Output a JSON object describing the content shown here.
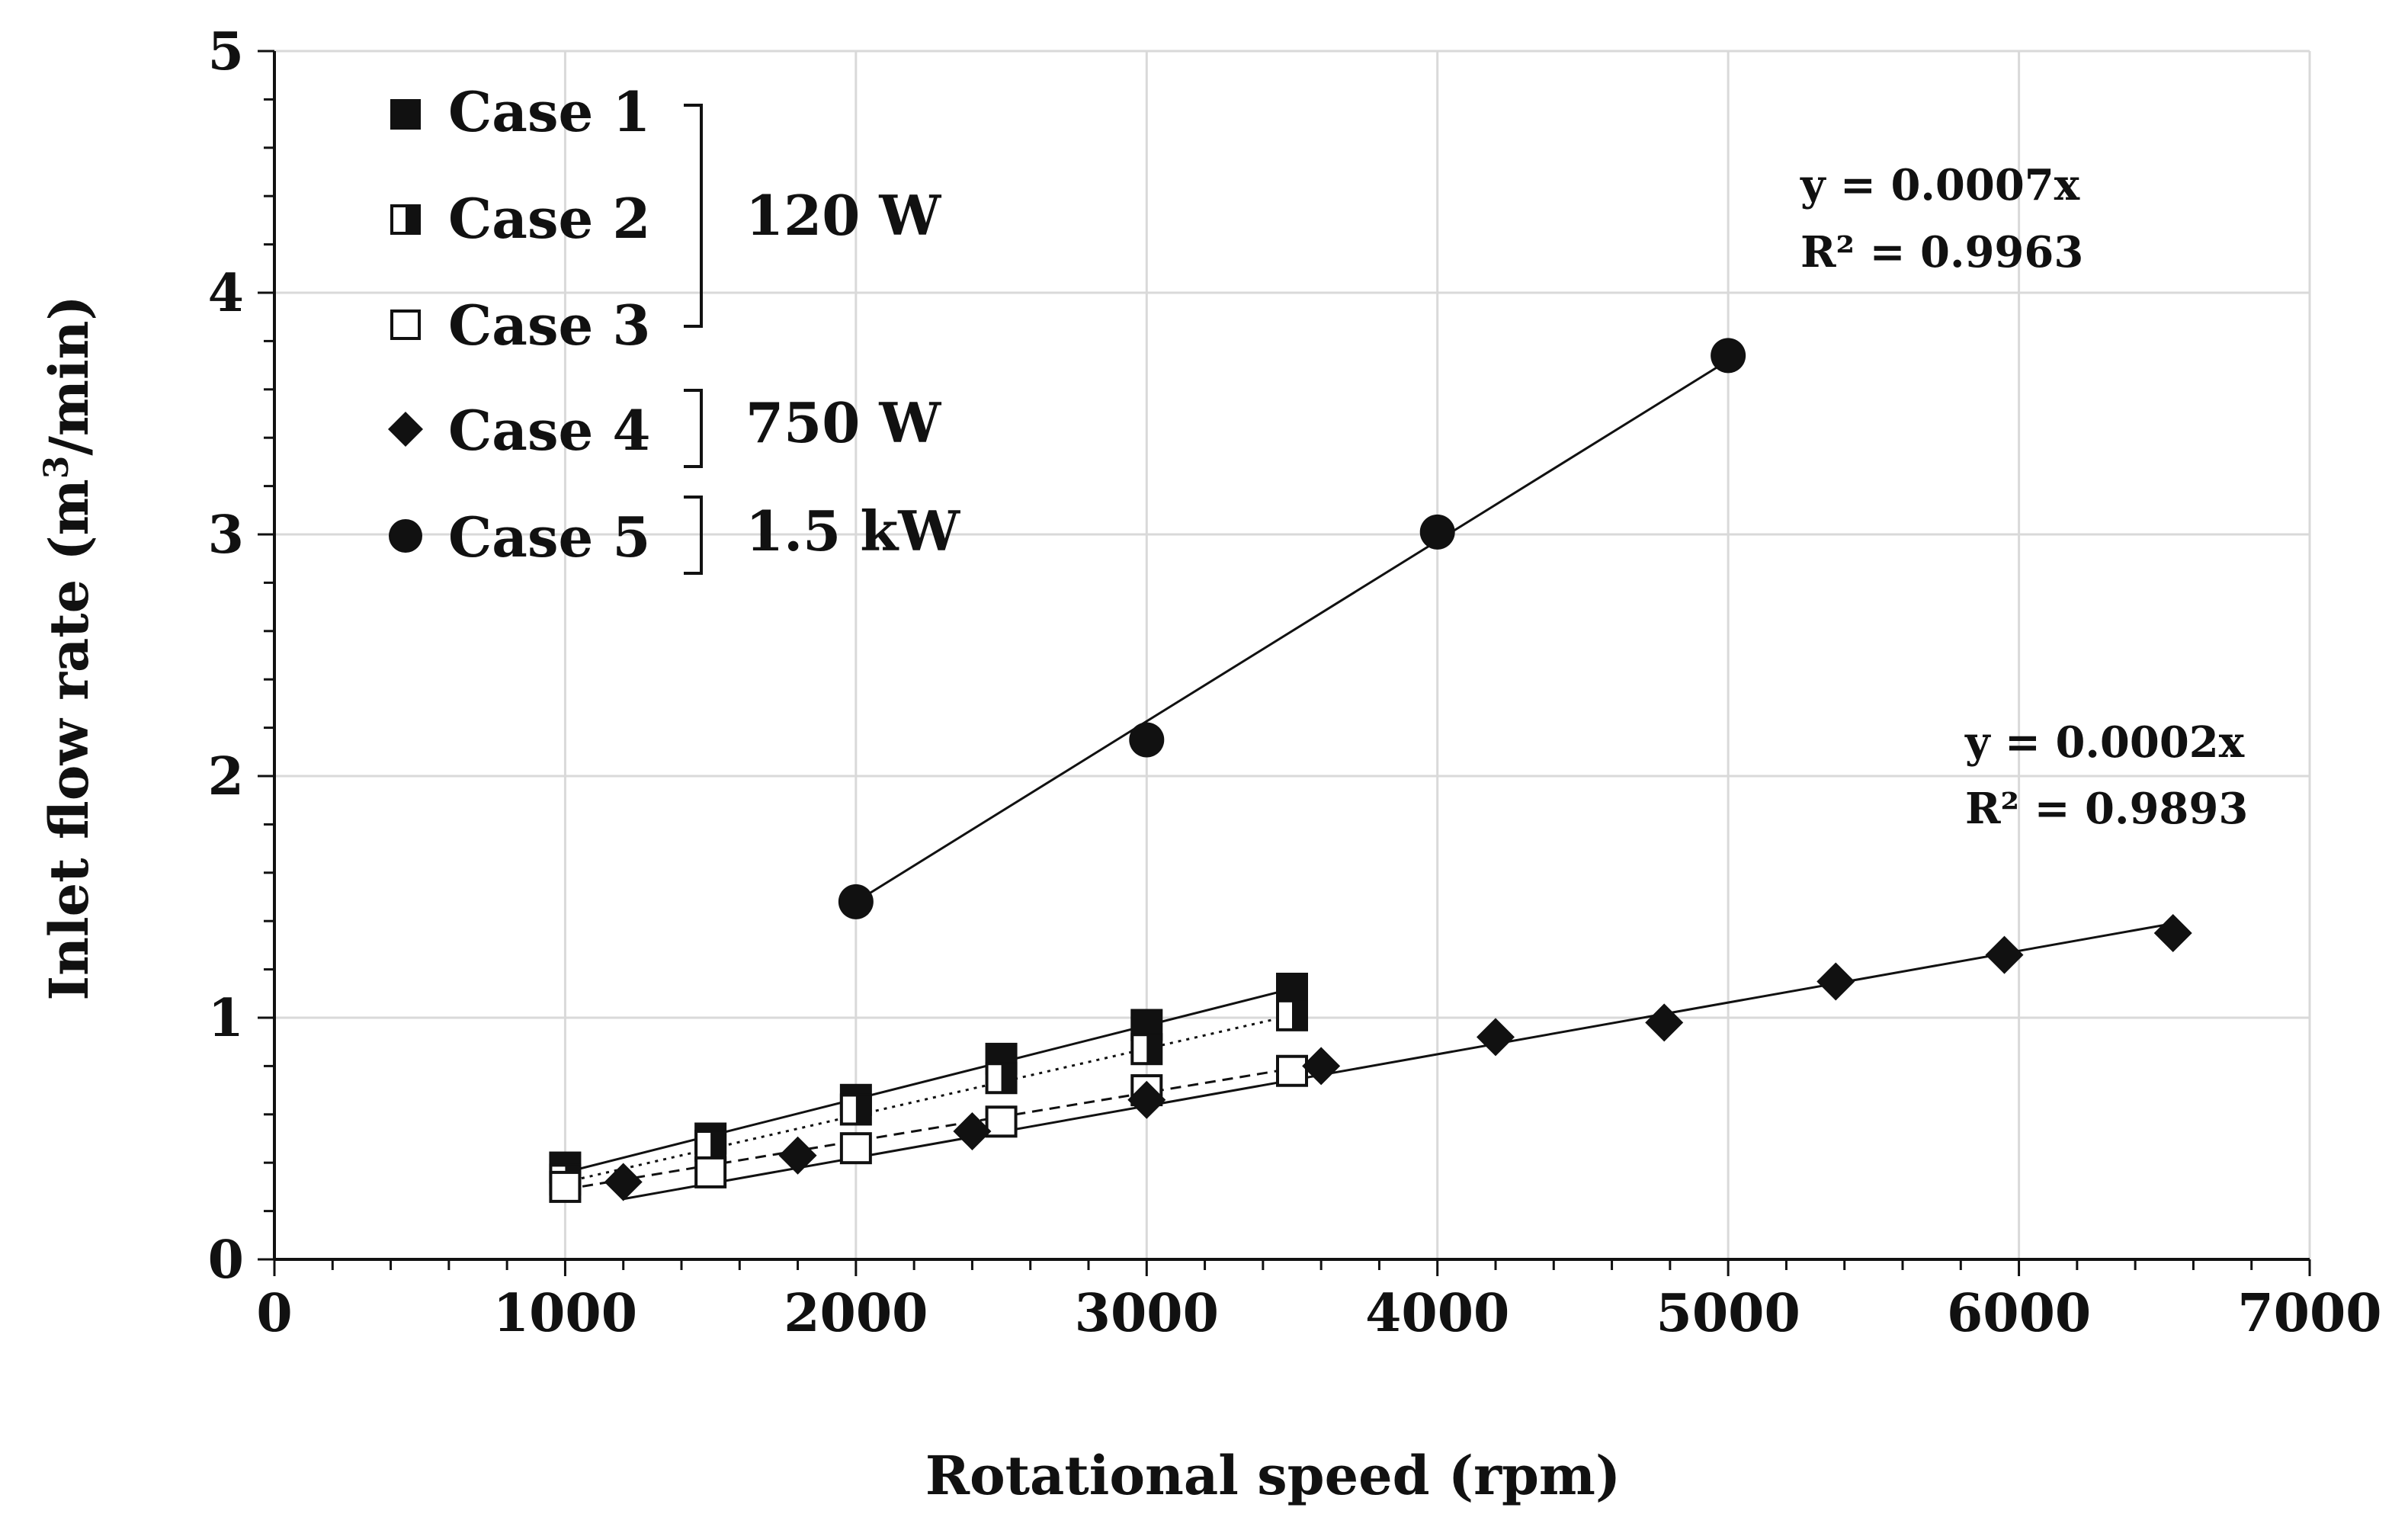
{
  "chart_data": {
    "type": "scatter",
    "xlabel": "Rotational speed (rpm)",
    "ylabel_main": "Inlet flow rate (m",
    "ylabel_sup": "3",
    "ylabel_tail": "/min)",
    "xlim": [
      0,
      7000
    ],
    "ylim": [
      0,
      5
    ],
    "x_ticks": [
      "0",
      "1000",
      "2000",
      "3000",
      "4000",
      "5000",
      "6000",
      "7000"
    ],
    "y_ticks": [
      "0",
      "1",
      "2",
      "3",
      "4",
      "5"
    ],
    "grid": true,
    "legend_position": "top-left",
    "series": [
      {
        "name": "Case 1",
        "marker": "square-filled",
        "line": "solid",
        "x": [
          1000,
          1500,
          2000,
          2500,
          3000,
          3500
        ],
        "y": [
          0.38,
          0.5,
          0.66,
          0.83,
          0.97,
          1.12
        ]
      },
      {
        "name": "Case 2",
        "marker": "square-half",
        "line": "dotted",
        "x": [
          1000,
          1500,
          2000,
          2500,
          3000,
          3500
        ],
        "y": [
          0.33,
          0.47,
          0.62,
          0.75,
          0.87,
          1.01
        ]
      },
      {
        "name": "Case 3",
        "marker": "square-open",
        "line": "dashed",
        "x": [
          1000,
          1500,
          2000,
          2500,
          3000,
          3500
        ],
        "y": [
          0.3,
          0.36,
          0.46,
          0.57,
          0.7,
          0.78
        ]
      },
      {
        "name": "Case 4",
        "marker": "diamond",
        "line": "solid",
        "x": [
          1200,
          1800,
          2400,
          3000,
          3600,
          4200,
          4780,
          5370,
          5950,
          6530
        ],
        "y": [
          0.32,
          0.43,
          0.53,
          0.66,
          0.8,
          0.92,
          0.98,
          1.15,
          1.26,
          1.35
        ]
      },
      {
        "name": "Case 5",
        "marker": "circle",
        "line": "solid",
        "x": [
          2000,
          3000,
          4000,
          5000
        ],
        "y": [
          1.48,
          2.15,
          3.01,
          3.74
        ]
      }
    ],
    "fit_lines": [
      {
        "series": "Case 1",
        "x": [
          1000,
          3500
        ],
        "y": [
          0.36,
          1.12
        ],
        "style": "solid"
      },
      {
        "series": "Case 2",
        "x": [
          1000,
          3500
        ],
        "y": [
          0.32,
          1.01
        ],
        "style": "dotted"
      },
      {
        "series": "Case 3",
        "x": [
          1000,
          3500
        ],
        "y": [
          0.29,
          0.79
        ],
        "style": "dashed"
      },
      {
        "series": "Case 4",
        "x": [
          1200,
          6530
        ],
        "y": [
          0.25,
          1.39
        ],
        "style": "solid"
      },
      {
        "series": "Case 5",
        "x": [
          2000,
          5000
        ],
        "y": [
          1.48,
          3.72
        ],
        "style": "solid"
      }
    ],
    "groups": [
      {
        "label": "120 W",
        "cases": [
          "Case 1",
          "Case 2",
          "Case 3"
        ]
      },
      {
        "label": "750 W",
        "cases": [
          "Case 4"
        ]
      },
      {
        "label": "1.5 kW",
        "cases": [
          "Case 5"
        ]
      }
    ],
    "annotations": [
      {
        "id": "case5-fit",
        "equation": "y = 0.0007x",
        "r2": "R² = 0.9963"
      },
      {
        "id": "case4-fit",
        "equation": "y = 0.0002x",
        "r2": "R² = 0.9893"
      }
    ]
  }
}
